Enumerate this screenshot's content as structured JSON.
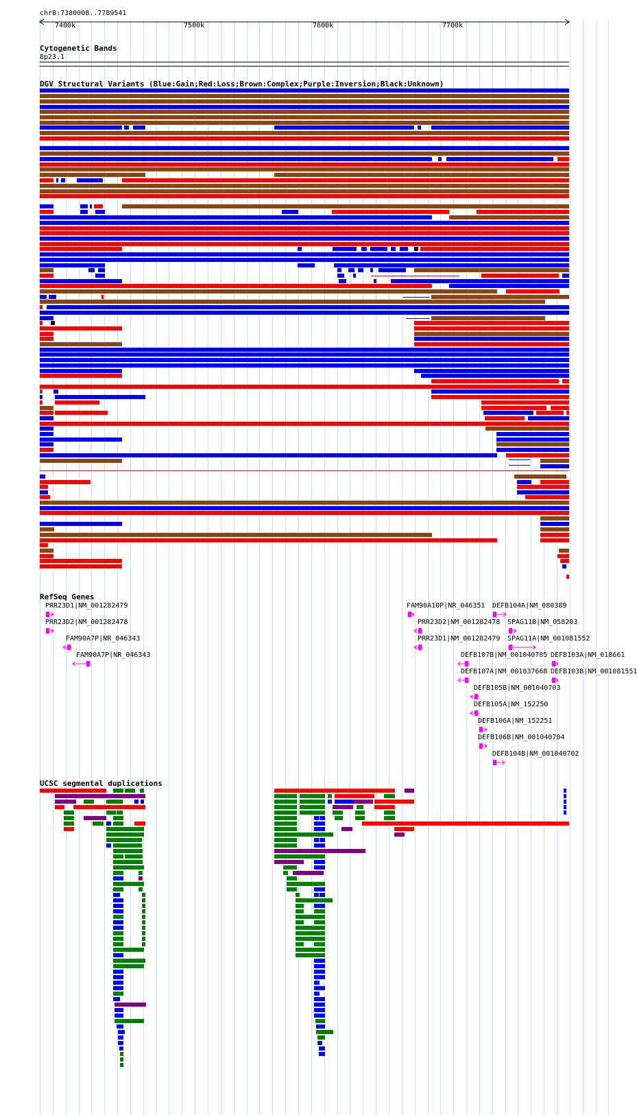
{
  "region": {
    "label": "chr8:7380008..7789541",
    "start": 7380008,
    "end": 7789541
  },
  "ruler": {
    "ticks": [
      "7400k",
      "7500k",
      "7600k",
      "7700k"
    ]
  },
  "tracks": {
    "cytoband": {
      "title": "Cytogenetic Bands",
      "band": "8p23.1"
    },
    "dgv": {
      "title": "DGV Structural Variants (Blue:Gain;Red:Loss;Brown:Complex;Purple:Inversion;Black:Unknown)"
    },
    "refseq": {
      "title": "RefSeq Genes"
    },
    "segdup": {
      "title": "UCSC segmental duplications"
    }
  },
  "genes": [
    {
      "label": "PRR23D1|NM_001282479",
      "strand": "+"
    },
    {
      "label": "PRR23D2|NM_001282478",
      "strand": "+"
    },
    {
      "label": "FAM90A7P|NR_046343",
      "strand": "-"
    },
    {
      "label": "FAM90A7P|NR_046343",
      "strand": "-"
    },
    {
      "label": "FAM90A10P|NR_046351",
      "strand": "+"
    },
    {
      "label": "PRR23D2|NM_001282478",
      "strand": "-"
    },
    {
      "label": "PRR23D1|NM_001282479",
      "strand": "-"
    },
    {
      "label": "DEFB104A|NM_080389",
      "strand": "+"
    },
    {
      "label": "SPAG11B|NM_058203",
      "strand": "+"
    },
    {
      "label": "SPAG11A|NM_001081552",
      "strand": "+"
    },
    {
      "label": "DEFB107B|NM_001040705",
      "strand": "-"
    },
    {
      "label": "DEFB107A|NM_001037668",
      "strand": "-"
    },
    {
      "label": "DEFB103A|NM_018661",
      "strand": "+"
    },
    {
      "label": "DEFB103B|NM_001081551",
      "strand": "+"
    },
    {
      "label": "DEFB105B|NM_001040703",
      "strand": "-"
    },
    {
      "label": "DEFB105A|NM_152250",
      "strand": "-"
    },
    {
      "label": "DEFB106A|NM_152251",
      "strand": "+"
    },
    {
      "label": "DEFB106B|NM_001040704",
      "strand": "+"
    },
    {
      "label": "DEFB104B|NM_001040702",
      "strand": "+"
    }
  ],
  "colors": {
    "gain": "#0000ff",
    "loss": "#ff0000",
    "complex": "#8b4513",
    "inversion": "#800080",
    "unknown": "#000000",
    "segdup_green": "#008000",
    "gene": "#ff00ff",
    "grid": "#c8e0f0"
  }
}
